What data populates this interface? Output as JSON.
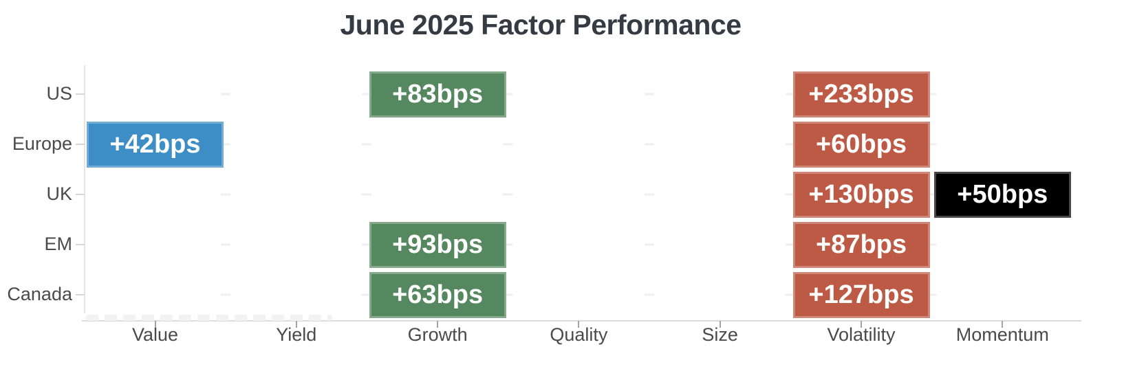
{
  "chart_data": {
    "type": "heatmap",
    "title": "June 2025 Factor Performance",
    "unit": "bps",
    "rows": [
      "US",
      "Europe",
      "UK",
      "EM",
      "Canada"
    ],
    "columns": [
      "Value",
      "Yield",
      "Growth",
      "Quality",
      "Size",
      "Volatility",
      "Momentum"
    ],
    "cells": [
      {
        "row": "US",
        "column": "Growth",
        "label": "+83bps",
        "value": 83,
        "color": "green"
      },
      {
        "row": "US",
        "column": "Volatility",
        "label": "+233bps",
        "value": 233,
        "color": "red"
      },
      {
        "row": "Europe",
        "column": "Value",
        "label": "+42bps",
        "value": 42,
        "color": "blue"
      },
      {
        "row": "Europe",
        "column": "Volatility",
        "label": "+60bps",
        "value": 60,
        "color": "red"
      },
      {
        "row": "UK",
        "column": "Volatility",
        "label": "+130bps",
        "value": 130,
        "color": "red"
      },
      {
        "row": "UK",
        "column": "Momentum",
        "label": "+50bps",
        "value": 50,
        "color": "black"
      },
      {
        "row": "EM",
        "column": "Growth",
        "label": "+93bps",
        "value": 93,
        "color": "green"
      },
      {
        "row": "EM",
        "column": "Volatility",
        "label": "+87bps",
        "value": 87,
        "color": "red"
      },
      {
        "row": "Canada",
        "column": "Growth",
        "label": "+63bps",
        "value": 63,
        "color": "green"
      },
      {
        "row": "Canada",
        "column": "Volatility",
        "label": "+127bps",
        "value": 127,
        "color": "red"
      }
    ],
    "palette": {
      "blue": "#3d8ec6",
      "green": "#55885f",
      "red": "#bd5a45",
      "black": "#000000"
    },
    "text_colors": {
      "title": "#343b43",
      "axis_labels": "#4a4a4a",
      "cell_text": "#ffffff"
    },
    "layout_hints": {
      "legend": "none",
      "grid": "faint dashes at empty cell boundaries",
      "x_axis_position": "bottom",
      "y_axis_position": "left"
    }
  }
}
